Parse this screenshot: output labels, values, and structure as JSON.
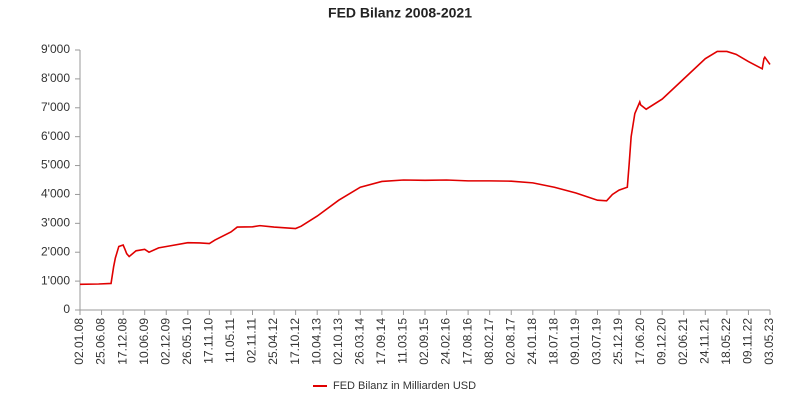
{
  "chart_data": {
    "type": "line",
    "title": "FED Bilanz 2008-2021",
    "x": [
      "02.01.08",
      "01.06.08",
      "10.09.08",
      "01.10.08",
      "15.10.08",
      "12.11.08",
      "17.12.08",
      "01.01.09",
      "15.01.09",
      "04.02.09",
      "01.04.09",
      "10.06.09",
      "15.07.09",
      "01.10.09",
      "01.01.10",
      "26.05.10",
      "01.09.10",
      "17.11.10",
      "01.01.11",
      "11.05.11",
      "01.07.11",
      "02.11.11",
      "01.01.12",
      "25.04.12",
      "17.10.12",
      "01.12.12",
      "10.04.13",
      "02.10.13",
      "26.03.14",
      "17.09.14",
      "11.03.15",
      "02.09.15",
      "24.02.16",
      "17.08.16",
      "08.02.17",
      "02.08.17",
      "24.01.18",
      "18.07.18",
      "09.01.19",
      "03.07.19",
      "15.09.19",
      "01.11.19",
      "25.12.19",
      "01.03.20",
      "15.03.20",
      "01.04.20",
      "01.05.20",
      "10.06.20",
      "17.06.20",
      "01.08.20",
      "09.12.20",
      "02.06.21",
      "24.11.21",
      "01.03.22",
      "18.05.22",
      "01.08.22",
      "09.11.22",
      "01.03.23",
      "15.03.23",
      "22.03.23",
      "03.05.23"
    ],
    "series": [
      {
        "name": "FED Bilanz in Milliarden USD",
        "color": "#e00000",
        "values": [
          890,
          900,
          920,
          1500,
          1800,
          2200,
          2250,
          2100,
          1950,
          1850,
          2050,
          2100,
          2000,
          2150,
          2220,
          2330,
          2320,
          2300,
          2420,
          2700,
          2870,
          2880,
          2920,
          2870,
          2820,
          2900,
          3250,
          3800,
          4250,
          4450,
          4500,
          4490,
          4500,
          4470,
          4470,
          4460,
          4400,
          4250,
          4050,
          3800,
          3780,
          4000,
          4150,
          4250,
          5000,
          6000,
          6800,
          7200,
          7100,
          6950,
          7300,
          8000,
          8700,
          8950,
          8950,
          8850,
          8600,
          8350,
          8700,
          8750,
          8500
        ]
      }
    ],
    "xlim": [
      "02.01.08",
      "03.05.23"
    ],
    "xticks": [
      "02.01.08",
      "25.06.08",
      "17.12.08",
      "10.06.09",
      "02.12.09",
      "26.05.10",
      "17.11.10",
      "11.05.11",
      "02.11.11",
      "25.04.12",
      "17.10.12",
      "10.04.13",
      "02.10.13",
      "26.03.14",
      "17.09.14",
      "11.03.15",
      "02.09.15",
      "24.02.16",
      "17.08.16",
      "08.02.17",
      "02.08.17",
      "24.01.18",
      "18.07.18",
      "09.01.19",
      "03.07.19",
      "25.12.19",
      "17.06.20",
      "09.12.20",
      "02.06.21",
      "24.11.21",
      "18.05.22",
      "09.11.22",
      "03.05.23"
    ],
    "ylim": [
      0,
      9000
    ],
    "yticks": [
      0,
      {
        "value": 1000,
        "label": "1'000"
      },
      {
        "value": 2000,
        "label": "2'000"
      },
      {
        "value": 3000,
        "label": "3'000"
      },
      {
        "value": 4000,
        "label": "4'000"
      },
      {
        "value": 5000,
        "label": "5'000"
      },
      {
        "value": 6000,
        "label": "6'000"
      },
      {
        "value": 7000,
        "label": "7'000"
      },
      {
        "value": 8000,
        "label": "8'000"
      },
      {
        "value": 9000,
        "label": "9'000"
      }
    ],
    "grid": false
  }
}
